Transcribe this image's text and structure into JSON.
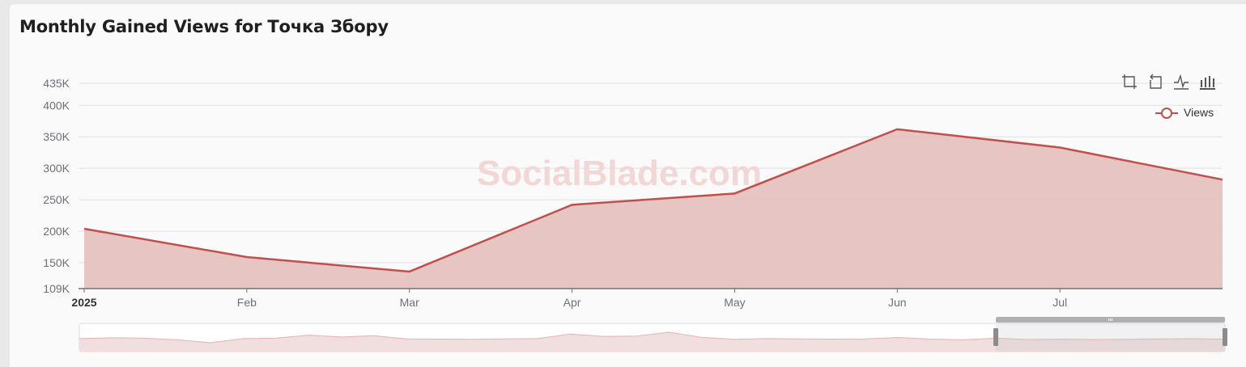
{
  "page": {
    "title": "Monthly Gained Views for Точка Збору",
    "watermark": "SocialBlade.com"
  },
  "toolbox": [
    "zoom-icon",
    "zoom-reset-icon",
    "line-chart-icon",
    "bar-chart-icon"
  ],
  "colors": {
    "line": "#c0504d",
    "area": "#e6c2bf",
    "grid": "#e0e0e0",
    "axis": "#6e7079"
  },
  "chart_data": {
    "type": "area",
    "title": "Monthly Gained Views for Точка Збору",
    "legend": {
      "entries": [
        "Views"
      ],
      "placement": "top-right"
    },
    "x_ticks": [
      "2025",
      "Feb",
      "Mar",
      "Apr",
      "May",
      "Jun",
      "Jul"
    ],
    "x_ticks_bold": [
      "2025"
    ],
    "y_ticks": [
      {
        "value": 109000,
        "label": "109K"
      },
      {
        "value": 150000,
        "label": "150K"
      },
      {
        "value": 200000,
        "label": "200K"
      },
      {
        "value": 250000,
        "label": "250K"
      },
      {
        "value": 300000,
        "label": "300K"
      },
      {
        "value": 350000,
        "label": "350K"
      },
      {
        "value": 400000,
        "label": "400K"
      },
      {
        "value": 435000,
        "label": "435K"
      }
    ],
    "ylim": [
      109000,
      435000
    ],
    "grid": true,
    "series": [
      {
        "name": "Views",
        "x": [
          "2025-01-01",
          "2025-02-01",
          "2025-03-01",
          "2025-04-01",
          "2025-05-01",
          "2025-06-01",
          "2025-07-01",
          "2025-08-01"
        ],
        "values": [
          204000,
          159000,
          136000,
          242000,
          260000,
          362000,
          333000,
          282000
        ]
      }
    ],
    "data_zoom": {
      "overview_values": [
        200000,
        204000,
        202000,
        195000,
        182000,
        200000,
        202000,
        215000,
        207000,
        213000,
        199000,
        198000,
        197000,
        199000,
        200000,
        220000,
        210000,
        211000,
        228000,
        206000,
        197000,
        200000,
        199000,
        198000,
        199000,
        205000,
        198000,
        195000,
        202000,
        196000,
        198000,
        196000,
        197000,
        199000,
        200000,
        198000
      ],
      "selected_range": [
        0.8,
        1.0
      ]
    }
  }
}
